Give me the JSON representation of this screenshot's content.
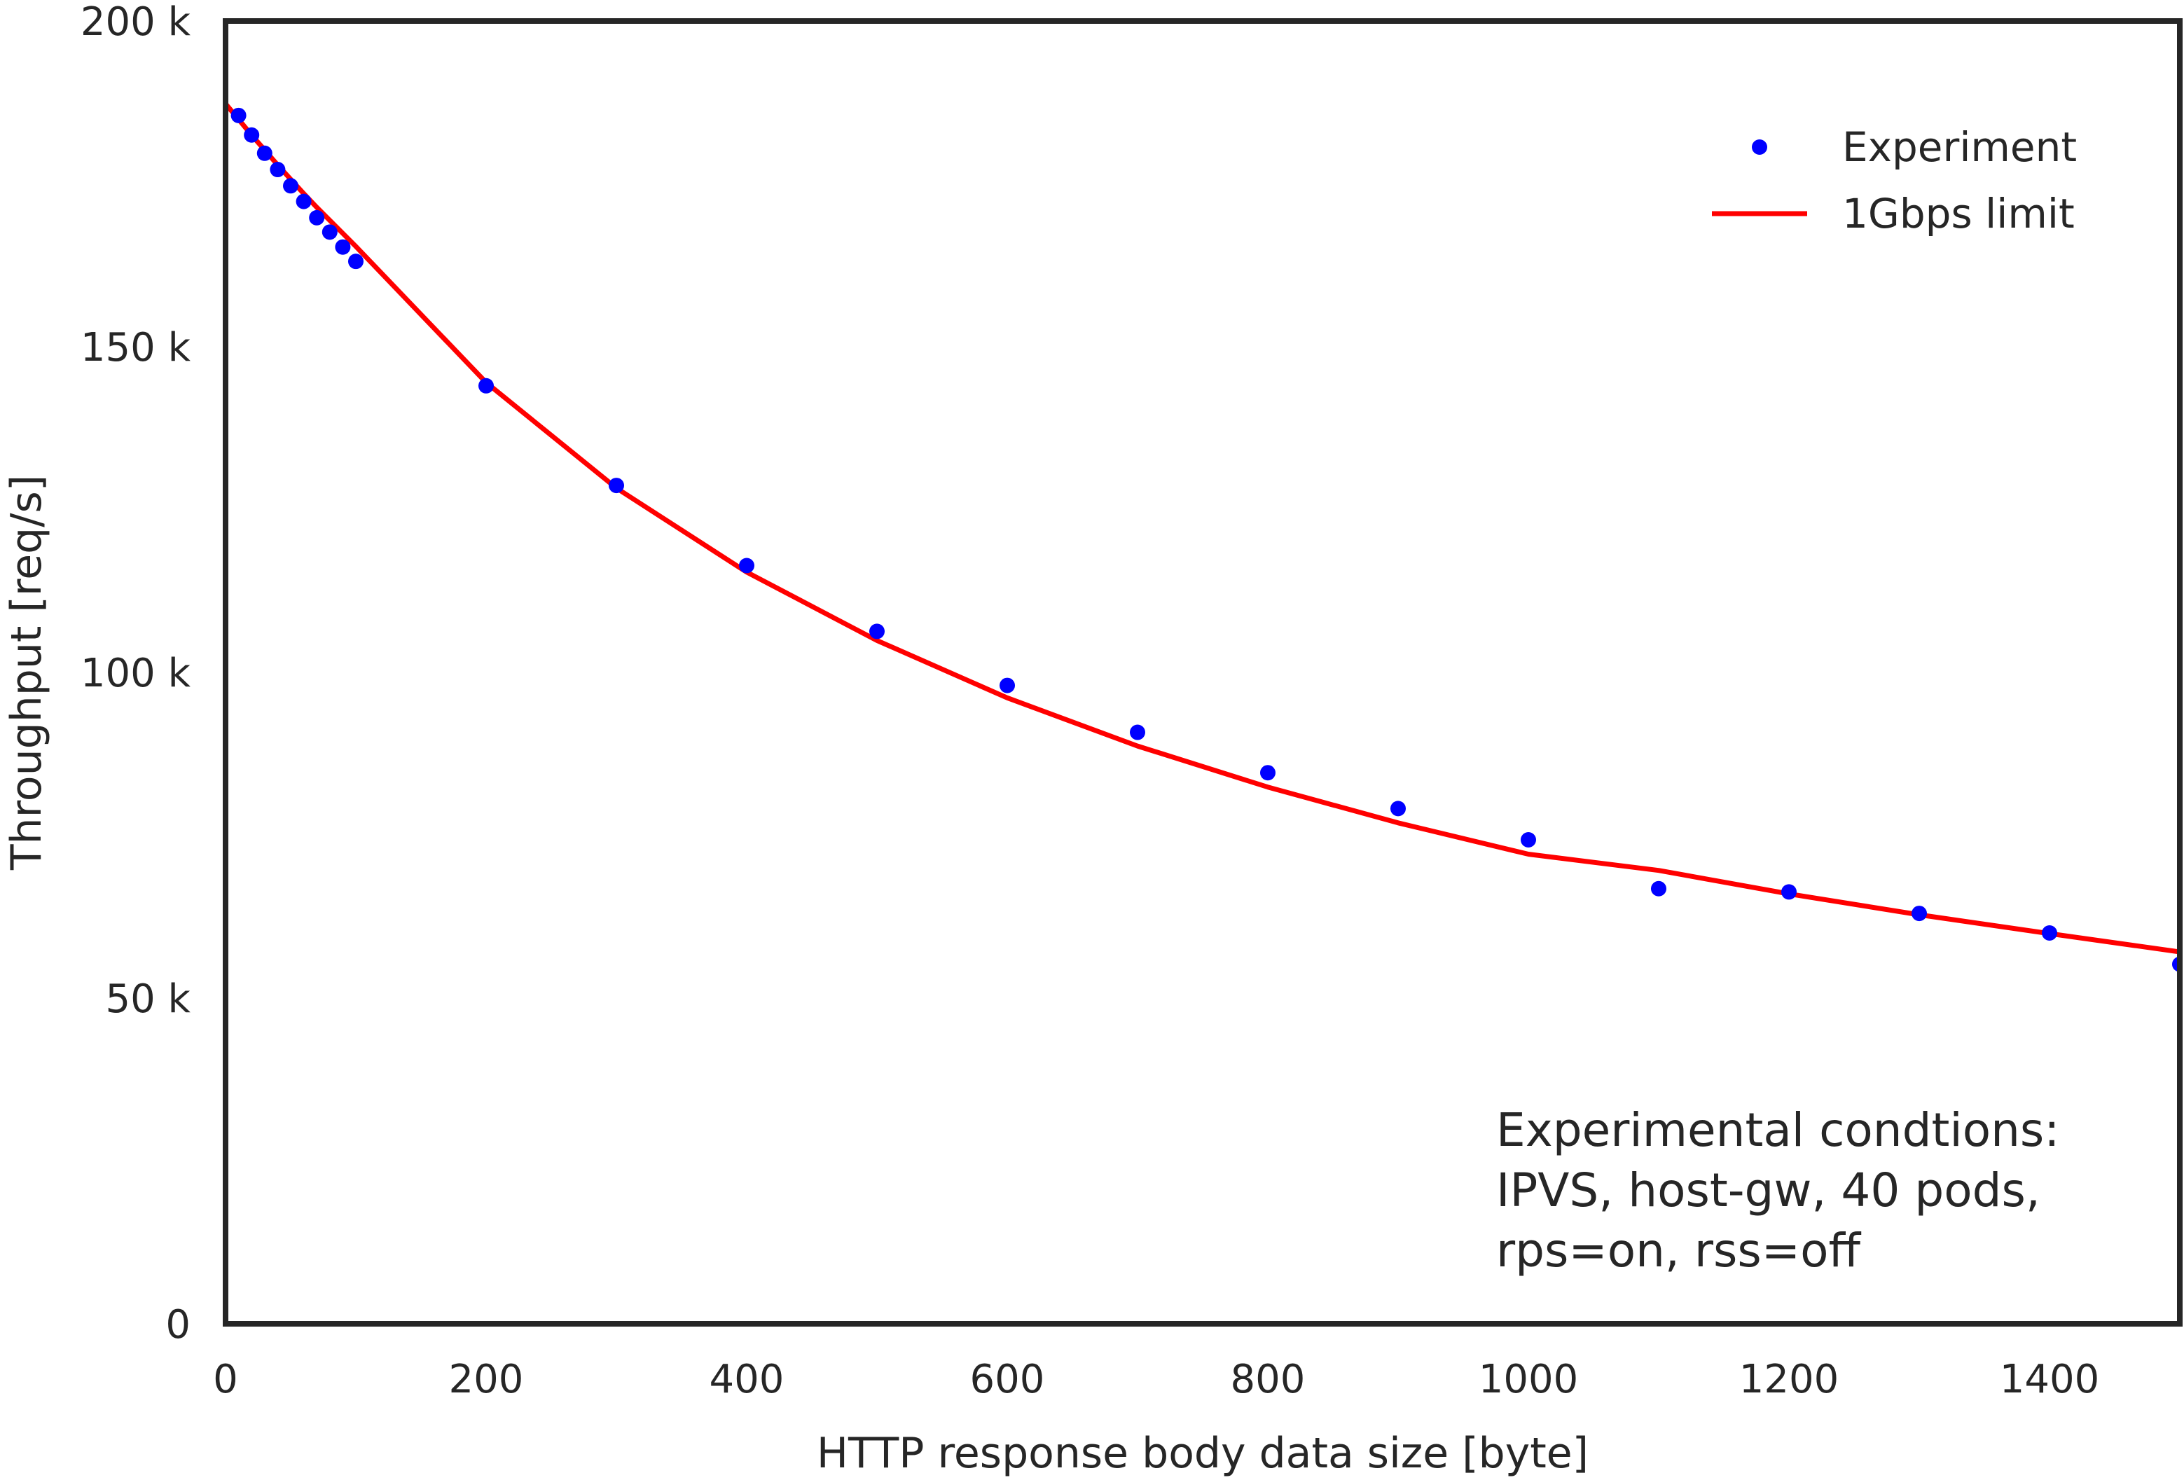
{
  "chart_data": {
    "type": "line",
    "title": "",
    "xlabel": "HTTP response body data size [byte]",
    "ylabel": "Throughput [req/s]",
    "xlim": [
      0,
      1500
    ],
    "ylim": [
      0,
      200000
    ],
    "x_ticks": [
      0,
      200,
      400,
      600,
      800,
      1000,
      1200,
      1400
    ],
    "x_tick_labels": [
      "0",
      "200",
      "400",
      "600",
      "800",
      "1000",
      "1200",
      "1400"
    ],
    "y_ticks": [
      0,
      50000,
      100000,
      150000,
      200000
    ],
    "y_tick_labels": [
      "0",
      "50 k",
      "100 k",
      "150 k",
      "200 k"
    ],
    "grid": false,
    "legend_position": "top-right",
    "series": [
      {
        "name": "Experiment",
        "kind": "scatter",
        "color": "#0000ff",
        "x": [
          10,
          20,
          30,
          40,
          50,
          60,
          70,
          80,
          90,
          100,
          200,
          300,
          400,
          500,
          600,
          700,
          800,
          900,
          1000,
          1100,
          1200,
          1300,
          1400,
          1500
        ],
        "y": [
          185500,
          182500,
          179700,
          177200,
          174700,
          172300,
          169800,
          167600,
          165300,
          163100,
          144000,
          128700,
          116400,
          106300,
          98000,
          90800,
          84600,
          79100,
          74300,
          66800,
          66300,
          63000,
          60000,
          55200
        ]
      },
      {
        "name": "1Gbps limit",
        "kind": "line",
        "color": "#ff0000",
        "x": [
          0,
          10,
          20,
          30,
          40,
          50,
          60,
          70,
          80,
          90,
          100,
          200,
          300,
          400,
          500,
          600,
          700,
          800,
          900,
          1000,
          1100,
          1200,
          1300,
          1400,
          1500
        ],
        "y": [
          187300,
          184900,
          182500,
          180200,
          177900,
          175700,
          173500,
          171400,
          169400,
          167400,
          165400,
          144500,
          128300,
          115400,
          104900,
          96100,
          88700,
          82400,
          76900,
          72100,
          69600,
          66000,
          62800,
          59900,
          57100
        ]
      }
    ],
    "annotation": {
      "position": "bottom-right",
      "lines": [
        "Experimental condtions:",
        "IPVS, host-gw, 40 pods,",
        "rps=on, rss=off"
      ]
    }
  }
}
